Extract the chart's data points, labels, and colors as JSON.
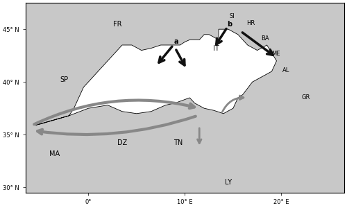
{
  "figsize": [
    5.0,
    3.0
  ],
  "dpi": 100,
  "lon_min": -6.5,
  "lon_max": 26.5,
  "lat_min": 29.5,
  "lat_max": 47.5,
  "background_color": "#ffffff",
  "land_color": "#c8c8c8",
  "sea_color": "#ffffff",
  "coastline_color": "#000000",
  "coastline_lw": 0.6,
  "border_color": "#333333",
  "border_lw": 0.5,
  "xticks": [
    0,
    10,
    20
  ],
  "yticks": [
    30,
    35,
    40,
    45
  ],
  "tick_fontsize": 6,
  "country_labels": [
    {
      "name": "FR",
      "lon": 3.0,
      "lat": 45.5,
      "fs": 7
    },
    {
      "name": "SP",
      "lon": -2.5,
      "lat": 40.2,
      "fs": 7
    },
    {
      "name": "IT",
      "lon": 13.2,
      "lat": 43.2,
      "fs": 7
    },
    {
      "name": "DZ",
      "lon": 3.5,
      "lat": 34.2,
      "fs": 7
    },
    {
      "name": "MA",
      "lon": -3.5,
      "lat": 33.2,
      "fs": 7
    },
    {
      "name": "TN",
      "lon": 9.3,
      "lat": 34.2,
      "fs": 7
    },
    {
      "name": "LY",
      "lon": 14.5,
      "lat": 30.5,
      "fs": 7
    },
    {
      "name": "GR",
      "lon": 22.5,
      "lat": 38.5,
      "fs": 6
    },
    {
      "name": "AL",
      "lon": 20.5,
      "lat": 41.1,
      "fs": 6
    },
    {
      "name": "BA",
      "lon": 18.3,
      "lat": 44.1,
      "fs": 6
    },
    {
      "name": "HR",
      "lon": 16.8,
      "lat": 45.6,
      "fs": 6
    },
    {
      "name": "SI",
      "lon": 14.9,
      "lat": 46.2,
      "fs": 6
    },
    {
      "name": "ME",
      "lon": 19.4,
      "lat": 42.7,
      "fs": 6
    }
  ],
  "grey_arrow_color": "#888888",
  "black_arrow_color": "#111111",
  "label_a": {
    "lon": 9.1,
    "lat": 43.8,
    "text": "a",
    "fs": 7
  },
  "label_b": {
    "lon": 14.6,
    "lat": 45.5,
    "text": "b",
    "fs": 7
  }
}
